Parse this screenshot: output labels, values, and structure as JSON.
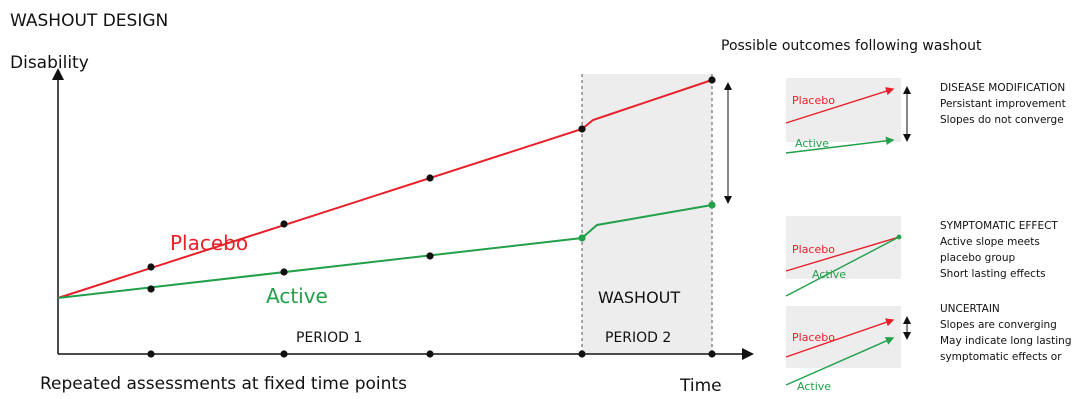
{
  "header": {
    "title": "WASHOUT DESIGN"
  },
  "main_chart": {
    "ylabel": "Disability",
    "xlabel": "Time",
    "caption": "Repeated assessments at fixed time points",
    "period1_label": "PERIOD 1",
    "period2_label": "PERIOD 2",
    "washout_label": "WASHOUT",
    "placebo_label": "Placebo",
    "active_label": "Active"
  },
  "outcomes": {
    "title": "Possible outcomes following washout",
    "panels": [
      {
        "placebo_label": "Placebo",
        "active_label": "Active",
        "heading": "DISEASE MODIFICATION",
        "lines": [
          "Persistant improvement",
          "Slopes do not converge"
        ]
      },
      {
        "placebo_label": "Placebo",
        "active_label": "Active",
        "heading": "SYMPTOMATIC EFFECT",
        "lines": [
          "Active slope meets",
          "placebo group",
          "Short lasting effects"
        ]
      },
      {
        "placebo_label": "Placebo",
        "active_label": "Active",
        "heading": "UNCERTAIN",
        "lines": [
          "Slopes are converging",
          "May indicate long lasting",
          "symptomatic effects or"
        ]
      }
    ]
  },
  "colors": {
    "placebo": "#e8202a",
    "active": "#22a04a",
    "shade": "#ededed",
    "ink": "#111111"
  }
}
